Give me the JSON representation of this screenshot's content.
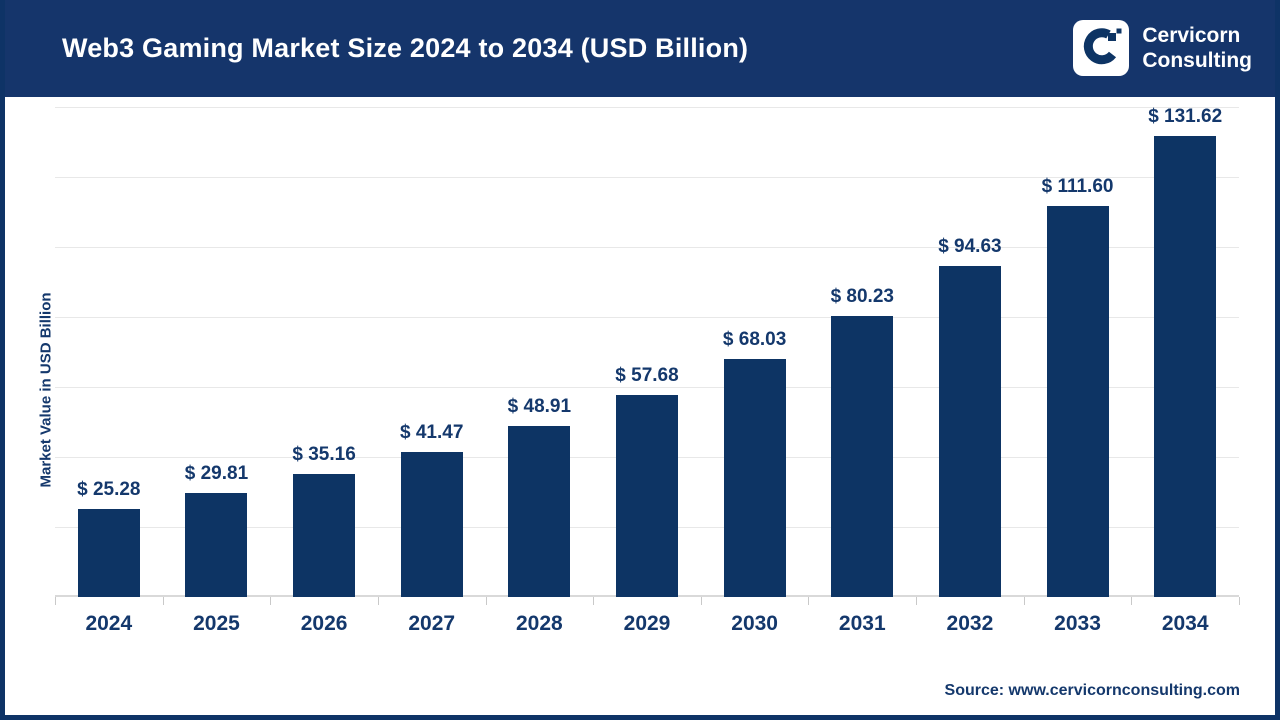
{
  "header": {
    "title": "Web3 Gaming Market Size 2024 to 2034 (USD Billion)",
    "logo": {
      "line1": "Cervicorn",
      "line2": "Consulting"
    }
  },
  "chart_data": {
    "type": "bar",
    "title": "Web3 Gaming Market Size 2024 to 2034 (USD Billion)",
    "categories": [
      "2024",
      "2025",
      "2026",
      "2027",
      "2028",
      "2029",
      "2030",
      "2031",
      "2032",
      "2033",
      "2034"
    ],
    "values": [
      25.28,
      29.81,
      35.16,
      41.47,
      48.91,
      57.68,
      68.03,
      80.23,
      94.63,
      111.6,
      131.62
    ],
    "value_labels": [
      "$ 25.28",
      "$ 29.81",
      "$ 35.16",
      "$ 41.47",
      "$ 48.91",
      "$ 57.68",
      "$ 68.03",
      "$ 80.23",
      "$ 94.63",
      "$ 111.60",
      "$ 131.62"
    ],
    "xlabel": "",
    "ylabel": "Market Value in USD Billion",
    "ylim": [
      0,
      140
    ],
    "grid_step": 20,
    "grid": true,
    "legend": "none"
  },
  "footer": {
    "source": "Source: www.cervicornconsulting.com"
  },
  "colors": {
    "header_bg": "#15356b",
    "bar": "#0d3464",
    "text": "#14386c",
    "grid": "#e8e8e8",
    "border": "#0e3366",
    "title_text": "#ffffff"
  }
}
